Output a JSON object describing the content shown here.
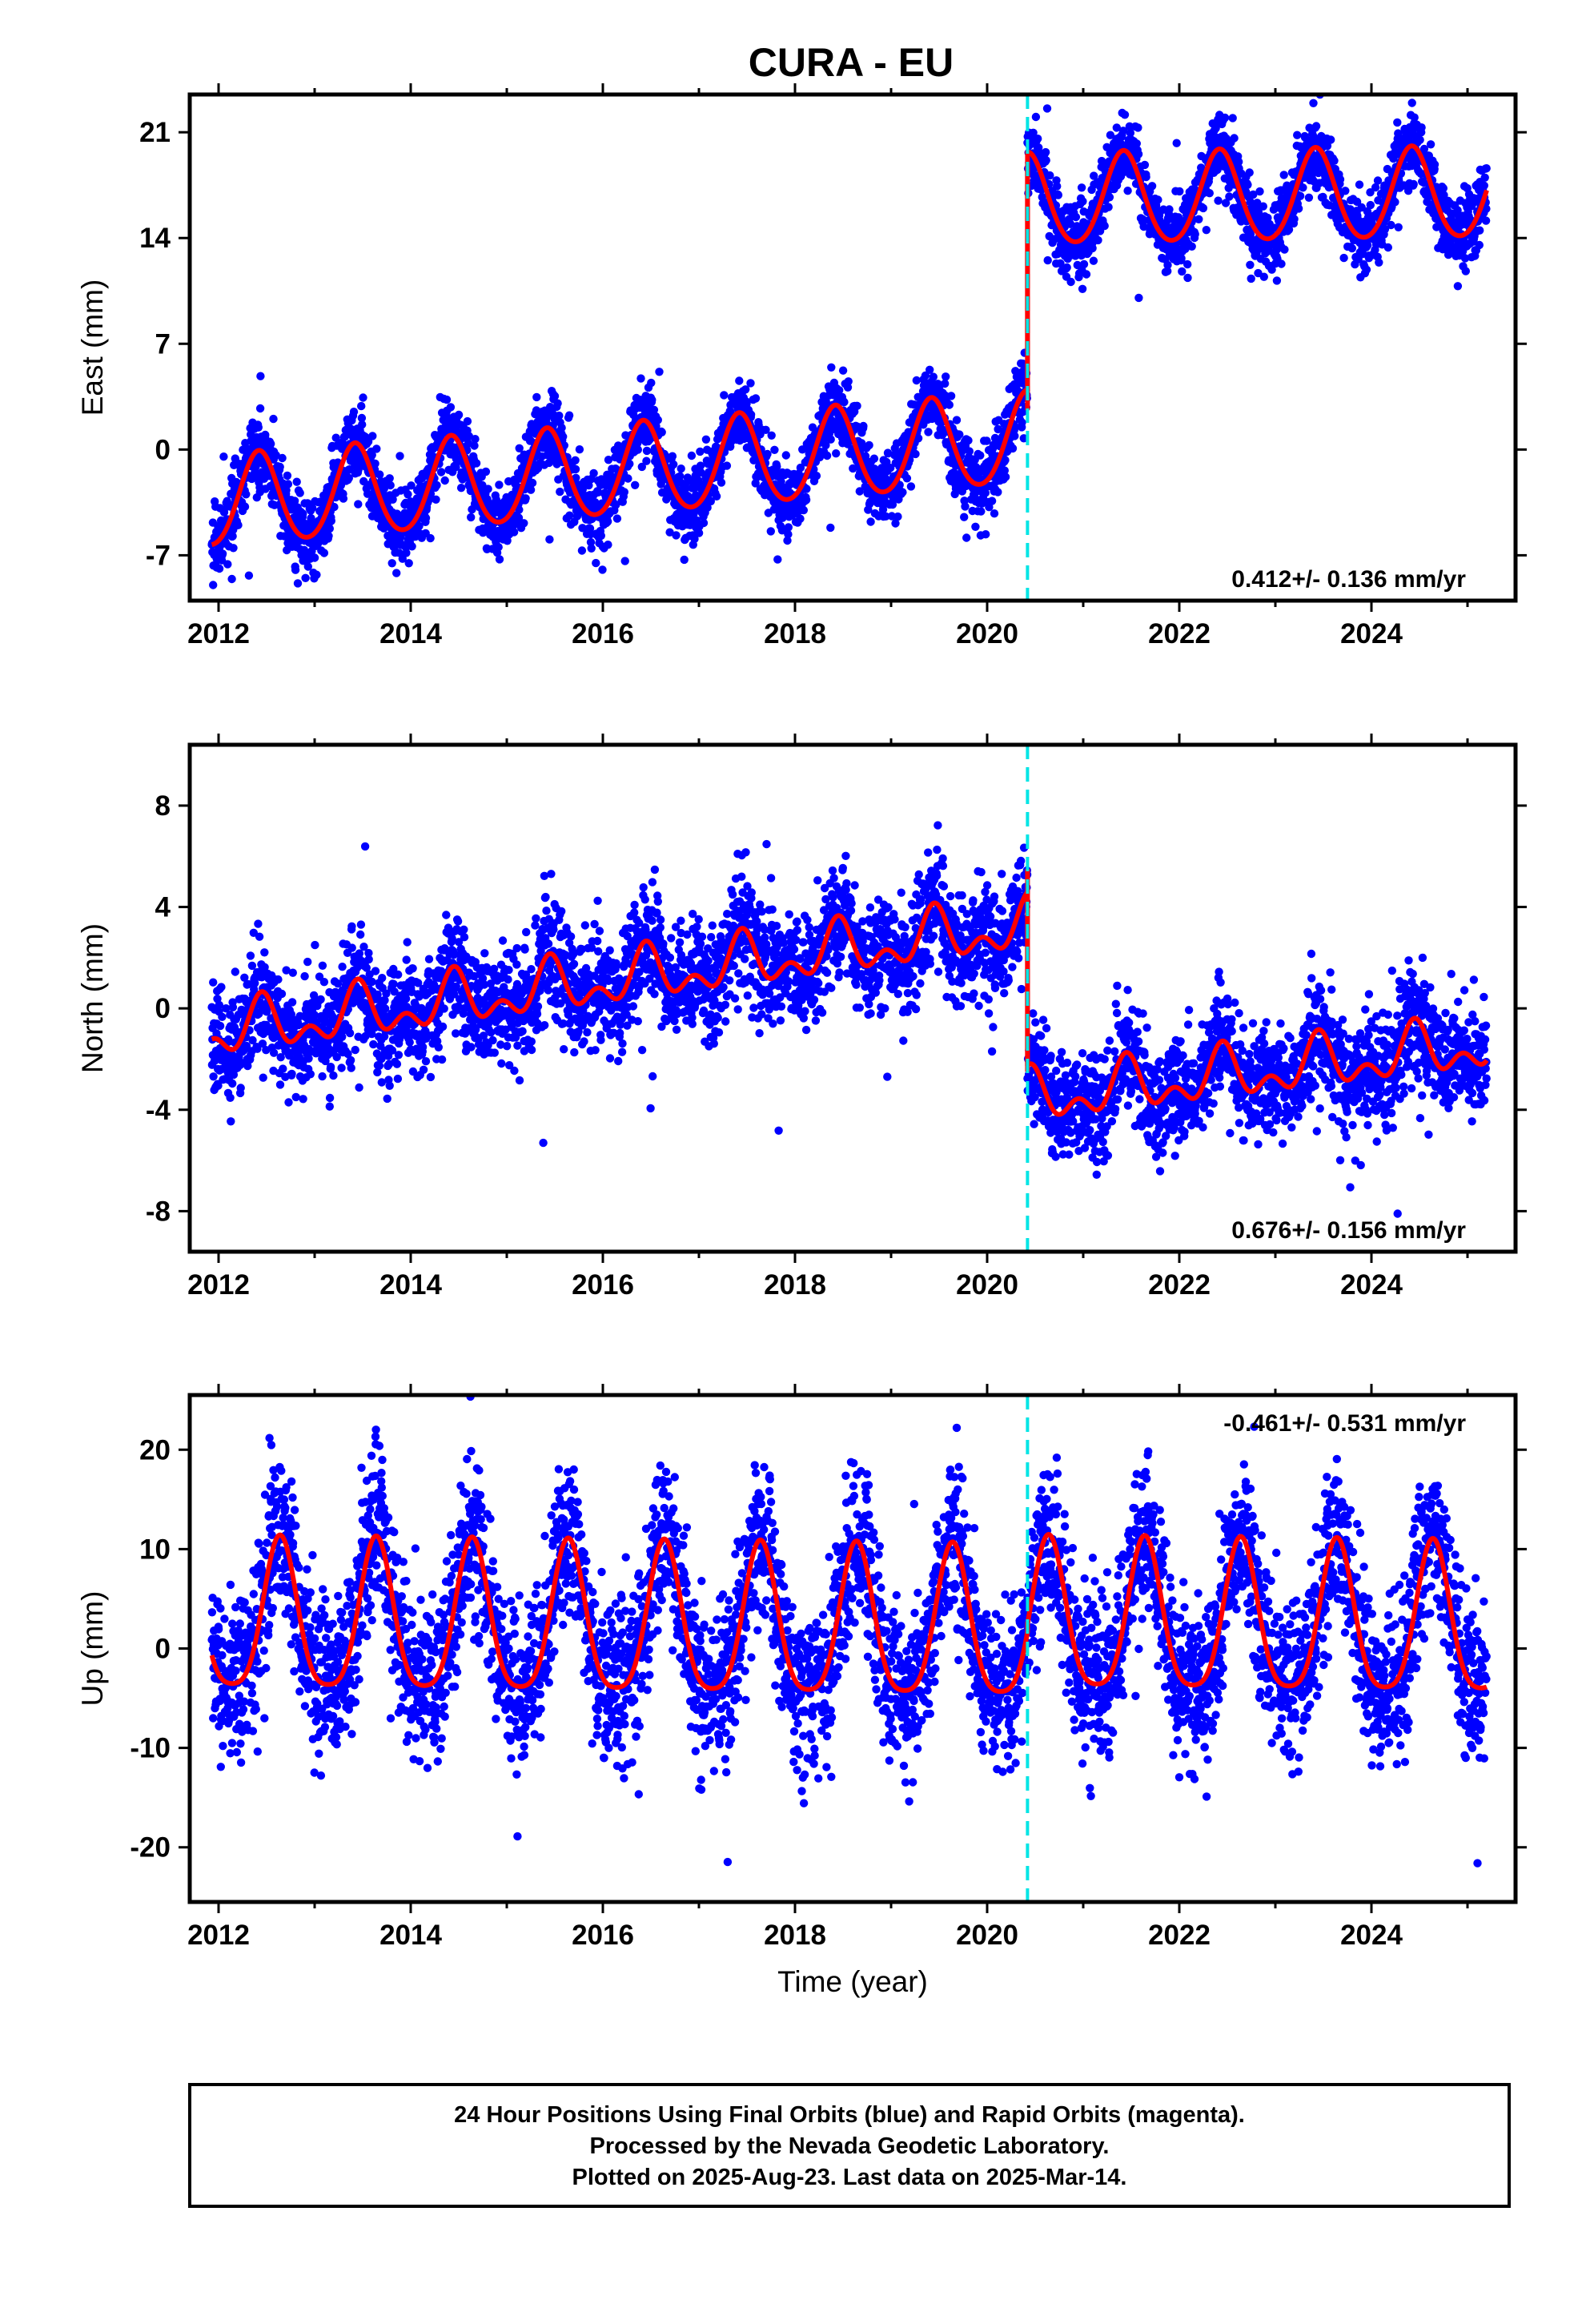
{
  "figure": {
    "title": "CURA - EU",
    "footer": {
      "lines": [
        "24 Hour Positions Using Final Orbits (blue) and Rapid Orbits (magenta).",
        "Processed by the Nevada Geodetic Laboratory.",
        "Plotted on 2025-Aug-23. Last data on 2025-Mar-14."
      ]
    },
    "colors": {
      "final_orbits": "#0000ff",
      "model_fit": "#ff0000",
      "step_marker": "#00e5e5"
    }
  },
  "chart_data": [
    {
      "type": "scatter",
      "name": "east",
      "ylabel": "East (mm)",
      "xlabel": "",
      "xlim": [
        2011.7,
        2025.5
      ],
      "ylim": [
        -10,
        23.5
      ],
      "xticks": [
        2012,
        2014,
        2016,
        2018,
        2020,
        2022,
        2024
      ],
      "yticks": [
        -7,
        0,
        7,
        14,
        21
      ],
      "xtick_labels": [
        "2012",
        "2014",
        "2016",
        "2018",
        "2020",
        "2022",
        "2024"
      ],
      "ytick_labels": [
        "-7",
        "0",
        "7",
        "14",
        "21"
      ],
      "rate_label": "0.412+/- 0.136 mm/yr",
      "data_range": [
        2011.93,
        2025.2
      ],
      "step_time": 2020.42,
      "model": {
        "offset_before": -3.6,
        "offset_after": 16.4,
        "trend_before": 0.5,
        "trend_after": 0.1,
        "annual_amplitude": 3.0,
        "annual_peak": 0.42,
        "semiannual_amplitude": 0.3,
        "noise_sd": 1.2
      },
      "step_segment": [
        2.6,
        18.6
      ]
    },
    {
      "type": "scatter",
      "name": "north",
      "ylabel": "North (mm)",
      "xlabel": "",
      "xlim": [
        2011.7,
        2025.5
      ],
      "ylim": [
        -9.6,
        10.4
      ],
      "xticks": [
        2012,
        2014,
        2016,
        2018,
        2020,
        2022,
        2024
      ],
      "yticks": [
        -8,
        -4,
        0,
        4,
        8
      ],
      "xtick_labels": [
        "2012",
        "2014",
        "2016",
        "2018",
        "2020",
        "2022",
        "2024"
      ],
      "ytick_labels": [
        "-8",
        "-4",
        "0",
        "4",
        "8"
      ],
      "rate_label": "0.676+/- 0.156 mm/yr",
      "data_range": [
        2011.93,
        2025.2
      ],
      "step_time": 2020.42,
      "model": {
        "offset_before": -1.0,
        "offset_after": -3.6,
        "trend_before": 0.5,
        "trend_after": 0.45,
        "annual_amplitude": 0.8,
        "annual_peak": 0.45,
        "semiannual_amplitude": 0.6,
        "noise_sd": 1.1
      },
      "step_segment": [
        -2.5,
        5.5
      ]
    },
    {
      "type": "scatter",
      "name": "up",
      "ylabel": "Up (mm)",
      "xlabel": "Time (year)",
      "xlim": [
        2011.7,
        2025.5
      ],
      "ylim": [
        -25.5,
        25.5
      ],
      "xticks": [
        2012,
        2014,
        2016,
        2018,
        2020,
        2022,
        2024
      ],
      "yticks": [
        -20,
        -10,
        0,
        10,
        20
      ],
      "xtick_labels": [
        "2012",
        "2014",
        "2016",
        "2018",
        "2020",
        "2022",
        "2024"
      ],
      "ytick_labels": [
        "-20",
        "-10",
        "0",
        "10",
        "20"
      ],
      "rate_label": "-0.461+/- 0.531 mm/yr",
      "data_range": [
        2011.93,
        2025.2
      ],
      "step_time": 2020.42,
      "model": {
        "offset_before": 2.5,
        "offset_after": 2.5,
        "trend_before": -0.1,
        "trend_after": -0.1,
        "annual_amplitude": 7.5,
        "annual_peak": 0.64,
        "semiannual_amplitude": 1.5,
        "noise_sd": 4.0
      },
      "step_segment": null
    }
  ]
}
